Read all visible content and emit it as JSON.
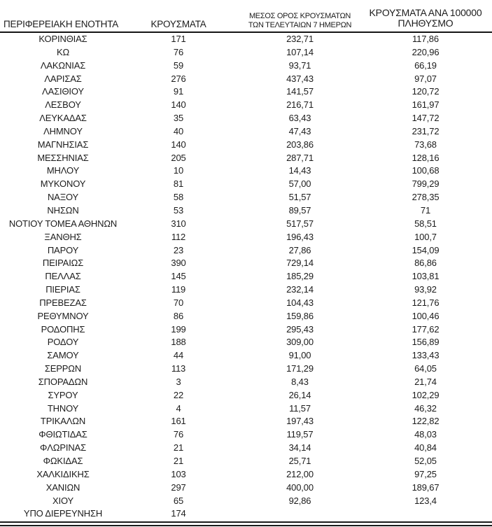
{
  "table": {
    "columns": [
      {
        "id": "region",
        "label": "ΠΕΡΙΦΕΡΕΙΑΚΗ ΕΝΟΤΗΤΑ"
      },
      {
        "id": "cases",
        "label": "ΚΡΟΥΣΜΑΤΑ"
      },
      {
        "id": "avg7days",
        "label": "ΜΕΣΟΣ ΟΡΟΣ ΚΡΟΥΣΜΑΤΩΝ\nΤΩΝ ΤΕΛΕΥΤΑΙΩΝ 7 ΗΜΕΡΩΝ"
      },
      {
        "id": "per100k",
        "label": "ΚΡΟΥΣΜΑΤΑ ΑΝΑ 100000\nΠΛΗΘΥΣΜΟ"
      }
    ],
    "rows": [
      [
        "ΚΟΡΙΝΘΙΑΣ",
        "171",
        "232,71",
        "117,86"
      ],
      [
        "ΚΩ",
        "76",
        "107,14",
        "220,96"
      ],
      [
        "ΛΑΚΩΝΙΑΣ",
        "59",
        "93,71",
        "66,19"
      ],
      [
        "ΛΑΡΙΣΑΣ",
        "276",
        "437,43",
        "97,07"
      ],
      [
        "ΛΑΣΙΘΙΟΥ",
        "91",
        "141,57",
        "120,72"
      ],
      [
        "ΛΕΣΒΟΥ",
        "140",
        "216,71",
        "161,97"
      ],
      [
        "ΛΕΥΚΑΔΑΣ",
        "35",
        "63,43",
        "147,72"
      ],
      [
        "ΛΗΜΝΟΥ",
        "40",
        "47,43",
        "231,72"
      ],
      [
        "ΜΑΓΝΗΣΙΑΣ",
        "140",
        "203,86",
        "73,68"
      ],
      [
        "ΜΕΣΣΗΝΙΑΣ",
        "205",
        "287,71",
        "128,16"
      ],
      [
        "ΜΗΛΟΥ",
        "10",
        "14,43",
        "100,68"
      ],
      [
        "ΜΥΚΟΝΟΥ",
        "81",
        "57,00",
        "799,29"
      ],
      [
        "ΝΑΞΟΥ",
        "58",
        "51,57",
        "278,35"
      ],
      [
        "ΝΗΣΩΝ",
        "53",
        "89,57",
        "71"
      ],
      [
        "ΝΟΤΙΟΥ ΤΟΜΕΑ ΑΘΗΝΩΝ",
        "310",
        "517,57",
        "58,51"
      ],
      [
        "ΞΑΝΘΗΣ",
        "112",
        "196,43",
        "100,7"
      ],
      [
        "ΠΑΡΟΥ",
        "23",
        "27,86",
        "154,09"
      ],
      [
        "ΠΕΙΡΑΙΩΣ",
        "390",
        "729,14",
        "86,86"
      ],
      [
        "ΠΕΛΛΑΣ",
        "145",
        "185,29",
        "103,81"
      ],
      [
        "ΠΙΕΡΙΑΣ",
        "119",
        "232,14",
        "93,92"
      ],
      [
        "ΠΡΕΒΕΖΑΣ",
        "70",
        "104,43",
        "121,76"
      ],
      [
        "ΡΕΘΥΜΝΟΥ",
        "86",
        "159,86",
        "100,46"
      ],
      [
        "ΡΟΔΟΠΗΣ",
        "199",
        "295,43",
        "177,62"
      ],
      [
        "ΡΟΔΟΥ",
        "188",
        "309,00",
        "156,89"
      ],
      [
        "ΣΑΜΟΥ",
        "44",
        "91,00",
        "133,43"
      ],
      [
        "ΣΕΡΡΩΝ",
        "113",
        "171,29",
        "64,05"
      ],
      [
        "ΣΠΟΡΑΔΩΝ",
        "3",
        "8,43",
        "21,74"
      ],
      [
        "ΣΥΡΟΥ",
        "22",
        "26,14",
        "102,29"
      ],
      [
        "ΤΗΝΟΥ",
        "4",
        "11,57",
        "46,32"
      ],
      [
        "ΤΡΙΚΑΛΩΝ",
        "161",
        "197,43",
        "122,82"
      ],
      [
        "ΦΘΙΩΤΙΔΑΣ",
        "76",
        "119,57",
        "48,03"
      ],
      [
        "ΦΛΩΡΙΝΑΣ",
        "21",
        "34,14",
        "40,84"
      ],
      [
        "ΦΩΚΙΔΑΣ",
        "21",
        "25,71",
        "52,05"
      ],
      [
        "ΧΑΛΚΙΔΙΚΗΣ",
        "103",
        "212,00",
        "97,25"
      ],
      [
        "ΧΑΝΙΩΝ",
        "297",
        "400,00",
        "189,67"
      ],
      [
        "ΧΙΟΥ",
        "65",
        "92,86",
        "123,4"
      ],
      [
        "ΥΠΟ ΔΙΕΡΕΥΝΗΣΗ",
        "174",
        "",
        ""
      ]
    ],
    "colors": {
      "text": "#1c1c1c",
      "rule": "#151515",
      "background": "#ffffff"
    }
  }
}
